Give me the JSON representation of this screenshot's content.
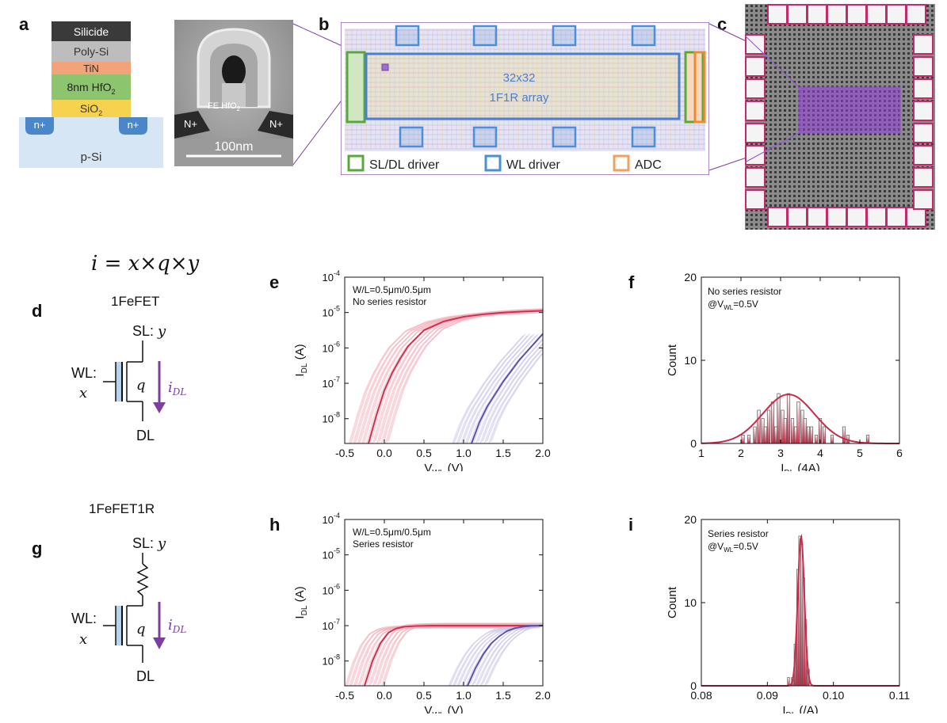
{
  "panels": {
    "a": "a",
    "b": "b",
    "c": "c",
    "d": "d",
    "e": "e",
    "f": "f",
    "g": "g",
    "h": "h",
    "i": "i"
  },
  "stack": {
    "silicide": "Silicide",
    "polysi": "Poly-Si",
    "tin": "TiN",
    "hfo2_pre": "8nm HfO",
    "hfo2_sub": "2",
    "sio2_pre": "SiO",
    "sio2_sub": "2",
    "nplus": "n+",
    "psi": "p-Si"
  },
  "tem": {
    "fe_pre": "FE HfO",
    "fe_sub": "2",
    "nplus": "N+",
    "scale": "100nm"
  },
  "layout": {
    "array_line1": "32x32",
    "array_line2": "1F1R array",
    "legend": [
      {
        "label": "SL/DL driver",
        "color": "#5aa83a"
      },
      {
        "label": "WL driver",
        "color": "#4a90d9"
      },
      {
        "label": "ADC",
        "color": "#f0a060"
      }
    ]
  },
  "equation": "i = x×q×y",
  "circuit_d": {
    "title": "1FeFET",
    "sl": "SL: ",
    "sl_var": "y",
    "wl": "WL:",
    "wl_var": "x",
    "q": "q",
    "i": "i",
    "i_sub": "DL",
    "dl": "DL"
  },
  "circuit_g": {
    "title": "1FeFET1R",
    "sl": "SL: ",
    "sl_var": "y",
    "wl": "WL:",
    "wl_var": "x",
    "q": "q",
    "i": "i",
    "i_sub": "DL",
    "dl": "DL"
  },
  "colors": {
    "red": "#cc2a48",
    "red_light": "#f2aab6",
    "blue": "#5b4aa6",
    "blue_light": "#c9c2e8",
    "purple": "#7b3fa0"
  },
  "chart_data": [
    {
      "id": "e",
      "type": "line",
      "annotation_line1": "W/L=0.5μm/0.5μm",
      "annotation_line2": "No series resistor",
      "xlabel_main": "V",
      "xlabel_sub": "WL",
      "xlabel_unit": " (V)",
      "ylabel_main": "I",
      "ylabel_sub": "DL",
      "ylabel_unit": " (A)",
      "xlim": [
        -0.5,
        2.0
      ],
      "ylim_log10": [
        -8.7,
        -4
      ],
      "x_ticks": [
        "-0.5",
        "0.0",
        "0.5",
        "1.0",
        "1.5",
        "2.0"
      ],
      "y_ticks": [
        {
          "base": "10",
          "exp": "-4",
          "v": -4
        },
        {
          "base": "10",
          "exp": "-5",
          "v": -5
        },
        {
          "base": "10",
          "exp": "-6",
          "v": -6
        },
        {
          "base": "10",
          "exp": "-7",
          "v": -7
        },
        {
          "base": "10",
          "exp": "-8",
          "v": -8
        }
      ],
      "series": [
        {
          "x": [
            -0.2,
            -0.1,
            0,
            0.1,
            0.2,
            0.3,
            0.5,
            0.75,
            1.0,
            1.25,
            1.5,
            1.75,
            2.0
          ],
          "log10_y": [
            -8.7,
            -7.9,
            -7.2,
            -6.7,
            -6.3,
            -5.95,
            -5.5,
            -5.25,
            -5.12,
            -5.05,
            -5.0,
            -4.97,
            -4.95
          ]
        },
        {
          "x": [
            1.1,
            1.2,
            1.3,
            1.4,
            1.5,
            1.6,
            1.7,
            1.8,
            1.9,
            2.0
          ],
          "log10_y": [
            -8.7,
            -8.1,
            -7.65,
            -7.3,
            -6.95,
            -6.65,
            -6.35,
            -6.1,
            -5.85,
            -5.6
          ]
        }
      ]
    },
    {
      "id": "f",
      "type": "bar",
      "annotation_line1": "No series resistor",
      "annotation_line2_pre": "@V",
      "annotation_line2_sub": "WL",
      "annotation_line2_post": "=0.5V",
      "xlabel_main": "I",
      "xlabel_sub": "DL",
      "xlabel_unit": " (4A)",
      "ylabel": "Count",
      "xlim": [
        1,
        6
      ],
      "ylim": [
        0,
        20
      ],
      "x_ticks": [
        "1",
        "2",
        "3",
        "4",
        "5",
        "6"
      ],
      "y_ticks": [
        "0",
        "10",
        "20"
      ],
      "bin_centers": [
        2.05,
        2.2,
        2.35,
        2.45,
        2.55,
        2.62,
        2.7,
        2.8,
        2.88,
        2.95,
        3.05,
        3.12,
        3.2,
        3.3,
        3.38,
        3.45,
        3.55,
        3.62,
        3.7,
        3.78,
        3.9,
        4.0,
        4.1,
        4.3,
        4.6,
        4.7,
        5.2
      ],
      "counts": [
        1,
        1,
        2,
        4,
        3,
        2,
        4,
        5,
        2,
        6,
        4,
        3,
        6,
        3,
        2,
        5,
        4,
        3,
        2,
        2,
        1,
        3,
        2,
        1,
        2,
        1,
        1
      ],
      "fit": {
        "mean": 3.2,
        "sigma": 0.65,
        "peak": 5.9
      }
    },
    {
      "id": "h",
      "type": "line",
      "annotation_line1": "W/L=0.5μm/0.5μm",
      "annotation_line2": "Series resistor",
      "xlabel_main": "V",
      "xlabel_sub": "WL",
      "xlabel_unit": " (V)",
      "ylabel_main": "I",
      "ylabel_sub": "DL",
      "ylabel_unit": " (A)",
      "xlim": [
        -0.5,
        2.0
      ],
      "ylim_log10": [
        -8.7,
        -4
      ],
      "x_ticks": [
        "-0.5",
        "0.0",
        "0.5",
        "1.0",
        "1.5",
        "2.0"
      ],
      "y_ticks": [
        {
          "base": "10",
          "exp": "-4",
          "v": -4
        },
        {
          "base": "10",
          "exp": "-5",
          "v": -5
        },
        {
          "base": "10",
          "exp": "-6",
          "v": -6
        },
        {
          "base": "10",
          "exp": "-7",
          "v": -7
        },
        {
          "base": "10",
          "exp": "-8",
          "v": -8
        }
      ],
      "series": [
        {
          "x": [
            -0.25,
            -0.15,
            -0.05,
            0.05,
            0.15,
            0.25,
            0.4,
            0.6,
            1.0,
            1.5,
            2.0
          ],
          "log10_y": [
            -8.7,
            -8.0,
            -7.5,
            -7.2,
            -7.08,
            -7.03,
            -7.01,
            -7.0,
            -7.0,
            -7.0,
            -7.0
          ]
        },
        {
          "x": [
            1.05,
            1.15,
            1.25,
            1.35,
            1.45,
            1.55,
            1.65,
            1.75,
            1.85,
            2.0
          ],
          "log10_y": [
            -8.7,
            -8.2,
            -7.8,
            -7.5,
            -7.3,
            -7.15,
            -7.07,
            -7.03,
            -7.01,
            -7.0
          ]
        }
      ]
    },
    {
      "id": "i",
      "type": "bar",
      "annotation_line1": "Series resistor",
      "annotation_line2_pre": "@V",
      "annotation_line2_sub": "WL",
      "annotation_line2_post": "=0.5V",
      "xlabel_main": "I",
      "xlabel_sub": "DL",
      "xlabel_unit": " (/A)",
      "ylabel": "Count",
      "xlim": [
        0.08,
        0.11
      ],
      "ylim": [
        0,
        20
      ],
      "x_ticks": [
        "0.08",
        "0.09",
        "0.10",
        "0.11"
      ],
      "y_ticks": [
        "0",
        "10",
        "20"
      ],
      "bin_centers": [
        0.0932,
        0.0938,
        0.0942,
        0.0946,
        0.0949,
        0.0952,
        0.0955,
        0.0958,
        0.0962
      ],
      "counts": [
        1,
        1,
        5,
        14,
        18,
        17,
        13,
        8,
        2
      ],
      "fit": {
        "mean": 0.0951,
        "sigma": 0.0005,
        "peak": 18
      }
    }
  ]
}
